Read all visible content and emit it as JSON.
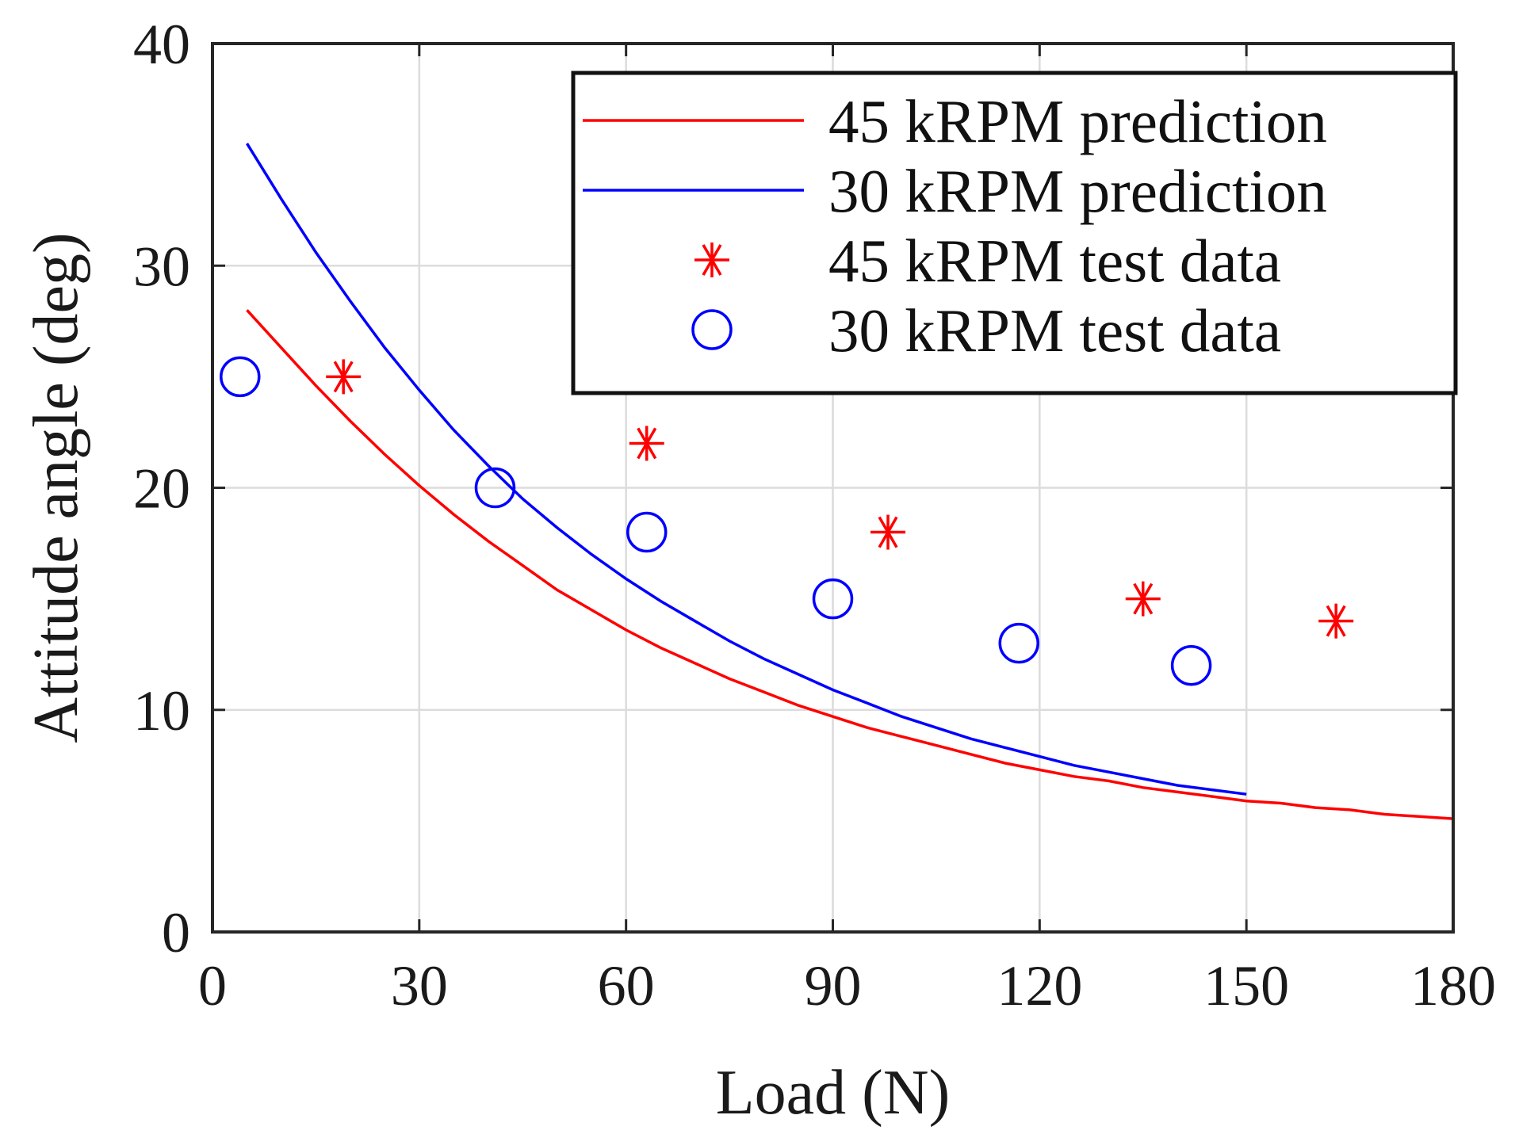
{
  "chart_data": {
    "type": "line",
    "xlabel": "Load (N)",
    "ylabel": "Attitude angle (deg)",
    "xlim": [
      0,
      180
    ],
    "ylim": [
      0,
      40
    ],
    "xticks": [
      0,
      30,
      60,
      90,
      120,
      150,
      180
    ],
    "yticks": [
      0,
      10,
      20,
      30,
      40
    ],
    "grid": true,
    "legend_position": "top-right",
    "series": [
      {
        "name": "45 kRPM prediction",
        "kind": "line",
        "color": "#ff0000",
        "x": [
          5,
          10,
          15,
          20,
          25,
          30,
          35,
          40,
          45,
          50,
          55,
          60,
          65,
          70,
          75,
          80,
          85,
          90,
          95,
          100,
          105,
          110,
          115,
          120,
          125,
          130,
          135,
          140,
          145,
          150,
          155,
          160,
          165,
          170,
          175,
          180
        ],
        "y": [
          28.0,
          26.3,
          24.6,
          23.0,
          21.5,
          20.1,
          18.8,
          17.6,
          16.5,
          15.4,
          14.5,
          13.6,
          12.8,
          12.1,
          11.4,
          10.8,
          10.2,
          9.7,
          9.2,
          8.8,
          8.4,
          8.0,
          7.6,
          7.3,
          7.0,
          6.8,
          6.5,
          6.3,
          6.1,
          5.9,
          5.8,
          5.6,
          5.5,
          5.3,
          5.2,
          5.1
        ]
      },
      {
        "name": "30 kRPM prediction",
        "kind": "line",
        "color": "#0000ff",
        "x": [
          5,
          10,
          15,
          20,
          25,
          30,
          35,
          40,
          45,
          50,
          55,
          60,
          65,
          70,
          75,
          80,
          85,
          90,
          95,
          100,
          105,
          110,
          115,
          120,
          125,
          130,
          135,
          140,
          145,
          150
        ],
        "y": [
          35.5,
          33.0,
          30.6,
          28.4,
          26.3,
          24.4,
          22.6,
          21.0,
          19.5,
          18.2,
          17.0,
          15.9,
          14.9,
          14.0,
          13.1,
          12.3,
          11.6,
          10.9,
          10.3,
          9.7,
          9.2,
          8.7,
          8.3,
          7.9,
          7.5,
          7.2,
          6.9,
          6.6,
          6.4,
          6.2
        ]
      },
      {
        "name": "45 kRPM test data",
        "kind": "scatter",
        "marker": "asterisk",
        "color": "#ff0000",
        "x": [
          19,
          63,
          98,
          135,
          163
        ],
        "y": [
          25,
          22,
          18,
          15,
          14
        ]
      },
      {
        "name": "30 kRPM test data",
        "kind": "scatter",
        "marker": "circle",
        "color": "#0000ff",
        "x": [
          4,
          41,
          63,
          90,
          117,
          142
        ],
        "y": [
          25,
          20,
          18,
          15,
          13,
          12
        ]
      }
    ]
  }
}
